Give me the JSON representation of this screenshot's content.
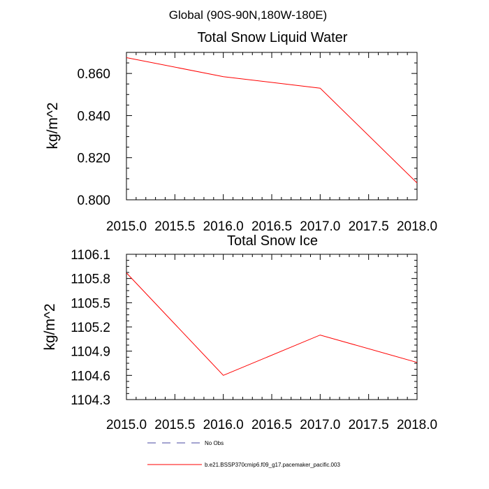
{
  "header": {
    "region": "Global (90S-90N,180W-180E)"
  },
  "colors": {
    "model_line": "#ff0000",
    "obs_line": "#4a4aa0",
    "axis": "#000000"
  },
  "chart_data": [
    {
      "type": "line",
      "title": "Total Snow Liquid Water",
      "xlabel": "",
      "ylabel": "kg/m^2",
      "xlim": [
        2015.0,
        2018.0
      ],
      "ylim": [
        0.8,
        0.87
      ],
      "xticks": [
        "2015.0",
        "2015.5",
        "2016.0",
        "2016.5",
        "2017.0",
        "2017.5",
        "2018.0"
      ],
      "xtick_values": [
        2015.0,
        2015.5,
        2016.0,
        2016.5,
        2017.0,
        2017.5,
        2018.0
      ],
      "yticks": [
        "0.800",
        "0.820",
        "0.840",
        "0.860"
      ],
      "ytick_values": [
        0.8,
        0.82,
        0.84,
        0.86
      ],
      "grid": false,
      "series": [
        {
          "name": "b.e21.BSSP370cmip6.f09_g17.pacemaker_pacific.003",
          "x": [
            2015,
            2016,
            2017,
            2018
          ],
          "y": [
            0.8675,
            0.8585,
            0.853,
            0.808
          ]
        }
      ]
    },
    {
      "type": "line",
      "title": "Total Snow Ice",
      "xlabel": "",
      "ylabel": "kg/m^2",
      "xlim": [
        2015.0,
        2018.0
      ],
      "ylim": [
        1104.3,
        1106.1
      ],
      "xticks": [
        "2015.0",
        "2015.5",
        "2016.0",
        "2016.5",
        "2017.0",
        "2017.5",
        "2018.0"
      ],
      "xtick_values": [
        2015.0,
        2015.5,
        2016.0,
        2016.5,
        2017.0,
        2017.5,
        2018.0
      ],
      "yticks": [
        "1104.3",
        "1104.6",
        "1104.9",
        "1105.2",
        "1105.5",
        "1105.8",
        "1106.1"
      ],
      "ytick_values": [
        1104.3,
        1104.6,
        1104.9,
        1105.2,
        1105.5,
        1105.8,
        1106.1
      ],
      "grid": false,
      "series": [
        {
          "name": "b.e21.BSSP370cmip6.f09_g17.pacemaker_pacific.003",
          "x": [
            2015,
            2016,
            2017,
            2018
          ],
          "y": [
            1105.87,
            1104.6,
            1105.1,
            1104.76
          ]
        }
      ]
    }
  ],
  "legend": {
    "placement": "bottom-center",
    "entries": [
      {
        "label": "No Obs",
        "style": "dashed",
        "color": "#4a4aa0"
      },
      {
        "label": "b.e21.BSSP370cmip6.f09_g17.pacemaker_pacific.003",
        "style": "solid",
        "color": "#ff0000"
      }
    ]
  }
}
